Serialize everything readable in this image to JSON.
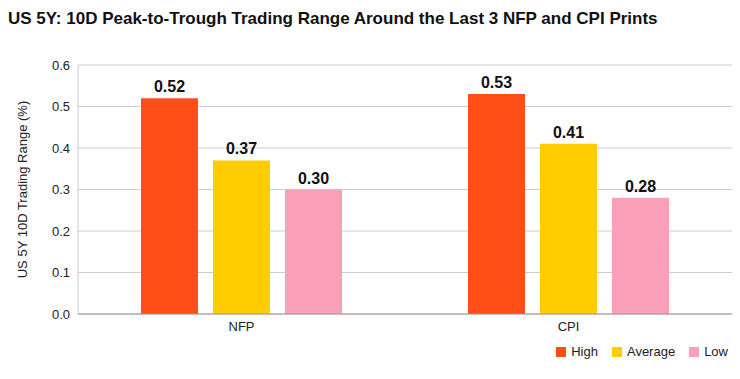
{
  "chart_data": {
    "type": "bar",
    "title": "US 5Y: 10D Peak-to-Trough Trading Range Around the Last 3 NFP and CPI Prints",
    "y_label": "US 5Y 10D Trading Range (%)",
    "categories": [
      "NFP",
      "CPI"
    ],
    "series": [
      {
        "name": "High",
        "color": "#ff4e17",
        "values": [
          0.52,
          0.53
        ],
        "value_labels": [
          "0.52",
          "0.53"
        ]
      },
      {
        "name": "Average",
        "color": "#ffcc00",
        "values": [
          0.37,
          0.41
        ],
        "value_labels": [
          "0.37",
          "0.41"
        ]
      },
      {
        "name": "Low",
        "color": "#f9a0b8",
        "values": [
          0.3,
          0.28
        ],
        "value_labels": [
          "0.30",
          "0.28"
        ]
      }
    ],
    "ylim": [
      0,
      0.6
    ],
    "yticks": [
      {
        "value": 0,
        "label": "0.0"
      },
      0.1,
      0.2,
      0.3,
      0.4,
      0.5,
      0.6
    ],
    "grid": true,
    "legend": "bottom-right",
    "data_labels": true
  }
}
